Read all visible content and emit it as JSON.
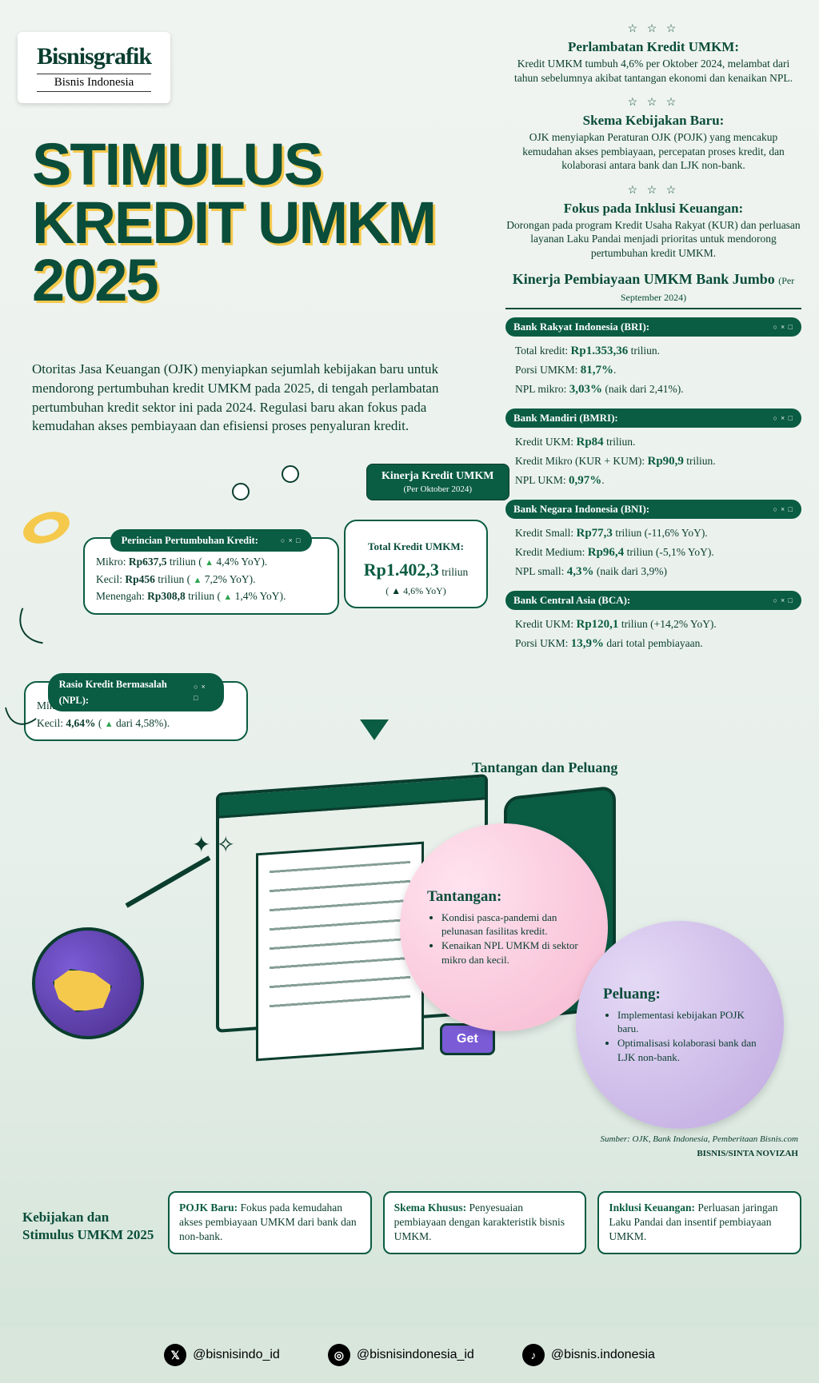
{
  "logo": {
    "main": "Bisnisgrafik",
    "sub": "Bisnis Indonesia"
  },
  "title": "STIMULUS KREDIT UMKM 2025",
  "intro": "Otoritas Jasa Keuangan (OJK) menyiapkan sejumlah kebijakan baru untuk mendorong pertumbuhan kredit UMKM pada 2025, di tengah perlambatan pertumbuhan kredit sektor ini pada 2024. Regulasi baru akan fokus pada kemudahan akses pembiayaan dan efisiensi proses penyaluran kredit.",
  "summaries": [
    {
      "title": "Perlambatan Kredit UMKM:",
      "text": "Kredit UMKM tumbuh 4,6% per Oktober 2024, melambat dari tahun sebelumnya akibat tantangan ekonomi dan kenaikan NPL."
    },
    {
      "title": "Skema Kebijakan Baru:",
      "text": "OJK menyiapkan Peraturan OJK (POJK) yang mencakup kemudahan akses pembiayaan, percepatan proses kredit, dan kolaborasi antara bank dan LJK non-bank."
    },
    {
      "title": "Fokus pada Inklusi Keuangan:",
      "text": "Dorongan pada program Kredit Usaha Rakyat (KUR) dan perluasan layanan Laku Pandai menjadi prioritas untuk mendorong pertumbuhan kredit UMKM."
    }
  ],
  "bigbank": {
    "heading": "Kinerja Pembiayaan UMKM Bank Jumbo",
    "sub": "(Per September 2024)",
    "banks": [
      {
        "name": "Bank Rakyat Indonesia (BRI):",
        "lines": [
          "Total kredit: <b>Rp1.353,36</b> triliun.",
          "Porsi UMKM: <b>81,7%</b>.",
          "NPL mikro: <b>3,03%</b> (naik dari 2,41%)."
        ]
      },
      {
        "name": "Bank Mandiri (BMRI):",
        "lines": [
          "Kredit UKM: <b>Rp84</b> triliun.",
          "Kredit Mikro (KUR + KUM): <b>Rp90,9</b> triliun.",
          "NPL UKM: <b>0,97%</b>."
        ]
      },
      {
        "name": "Bank Negara Indonesia (BNI):",
        "lines": [
          "Kredit Small: <b>Rp77,3</b> triliun (-11,6% YoY).",
          "Kredit Medium: <b>Rp96,4</b> triliun (-5,1% YoY).",
          "NPL small: <b>4,3%</b> (naik dari 3,9%)"
        ]
      },
      {
        "name": "Bank Central Asia (BCA):",
        "lines": [
          "Kredit UKM: <b>Rp120,1</b> triliun (+14,2% YoY).",
          "Porsi UKM: <b>13,9%</b> dari total pembiayaan."
        ]
      }
    ]
  },
  "kinerja": {
    "label": "Kinerja Kredit UMKM",
    "sub": "(Per Oktober 2024)"
  },
  "total": {
    "label": "Total Kredit UMKM:",
    "value": "Rp1.402,3",
    "unit": "triliun",
    "yoy": "( ▲ 4,6% YoY)"
  },
  "growth": {
    "header": "Perincian Pertumbuhan Kredit:",
    "rows": [
      "Mikro: <b>Rp637,5</b> triliun ( <span class='tri'>▲</span> 4,4% YoY).",
      "Kecil: <b>Rp456</b> triliun ( <span class='tri'>▲</span> 7,2% YoY).",
      "Menengah: <b>Rp308,8</b> triliun ( <span class='tri'>▲</span> 1,4% YoY)."
    ]
  },
  "npl": {
    "header": "Rasio Kredit Bermasalah (NPL):",
    "rows": [
      "Mikro: <b>3,03%</b> ( <span class='tri'>▲</span> dari 2,41%).",
      "Kecil: <b>4,64%</b> ( <span class='tri'>▲</span> dari 4,58%)."
    ]
  },
  "challenge_heading": "Tantangan dan Peluang",
  "tantangan": {
    "title": "Tantangan:",
    "items": [
      "Kondisi pasca-pandemi dan pelunasan fasilitas kredit.",
      "Kenaikan NPL UMKM di sektor mikro dan kecil."
    ]
  },
  "peluang": {
    "title": "Peluang:",
    "items": [
      "Implementasi kebijakan POJK baru.",
      "Optimalisasi kolaborasi bank dan LJK non-bank."
    ]
  },
  "get_button": "Get",
  "source": {
    "line1": "Sumber: OJK, Bank Indonesia, Pemberitaan Bisnis.com",
    "credit": "BISNIS/SINTA NOVIZAH"
  },
  "policy_label": "Kebijakan dan Stimulus UMKM 2025",
  "policies": [
    "<b>POJK Baru:</b> Fokus pada kemudahan akses pembiayaan UMKM dari bank dan non-bank.",
    "<b>Skema Khusus:</b> Penyesuaian pembiayaan dengan karakteristik bisnis UMKM.",
    "<b>Inklusi Keuangan:</b> Perluasan jaringan Laku Pandai dan insentif pembiayaan UMKM."
  ],
  "socials": [
    {
      "icon": "𝕏",
      "handle": "@bisnisindo_id"
    },
    {
      "icon": "◎",
      "handle": "@bisnisindonesia_id"
    },
    {
      "icon": "♪",
      "handle": "@bisnis.indonesia"
    }
  ],
  "colors": {
    "dark_green": "#0a5c42",
    "text_green": "#0a3d2e",
    "yellow": "#f5c94c",
    "purple": "#7b5cd6",
    "pink": "#f6b8d0",
    "lilac": "#bfa8e0"
  }
}
